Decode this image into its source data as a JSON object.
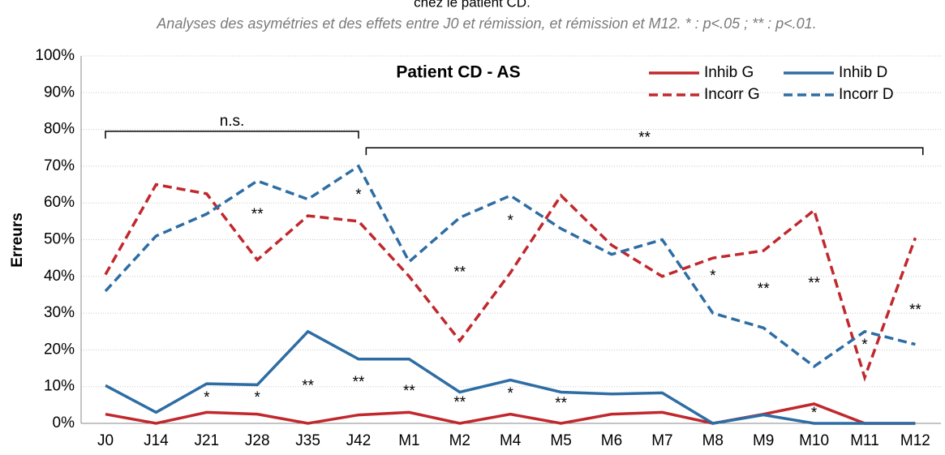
{
  "chart_data": {
    "type": "line",
    "heading": "chez le patient CD.",
    "subtitle": "Analyses des asymétries et des effets entre J0 et rémission, et rémission et M12. * : p<.05 ; ** : p<.01.",
    "title": "Patient CD - AS",
    "y_label": "Erreurs",
    "categories": [
      "J0",
      "J14",
      "J21",
      "J28",
      "J35",
      "J42",
      "M1",
      "M2",
      "M4",
      "M5",
      "M6",
      "M7",
      "M8",
      "M9",
      "M10",
      "M11",
      "M12"
    ],
    "series": [
      {
        "name": "Inhib G",
        "color": "#c0282d",
        "dashed": false,
        "values": [
          2.5,
          0,
          3,
          2.5,
          0,
          2.3,
          3,
          0,
          2.5,
          0,
          2.5,
          3,
          0,
          2.5,
          5.3,
          0,
          0
        ]
      },
      {
        "name": "Inhib D",
        "color": "#2e6da4",
        "dashed": false,
        "values": [
          10.3,
          3,
          10.8,
          10.5,
          25,
          17.5,
          17.5,
          8.5,
          11.8,
          8.5,
          8,
          8.3,
          0,
          2.3,
          0,
          0,
          0
        ]
      },
      {
        "name": "Incorr G",
        "color": "#c0282d",
        "dashed": true,
        "values": [
          40.5,
          65,
          62.5,
          44.5,
          56.5,
          55,
          40,
          22.5,
          41,
          62,
          48.5,
          40,
          45,
          47,
          58,
          12.5,
          50.5
        ]
      },
      {
        "name": "Incorr D",
        "color": "#2e6da4",
        "dashed": true,
        "values": [
          36,
          51,
          57,
          66,
          61,
          70,
          44,
          56,
          62,
          53,
          46,
          50,
          30,
          26,
          15.5,
          25,
          21.5
        ]
      }
    ],
    "ylim": [
      0,
      100
    ],
    "yticks": [
      {
        "value": 0,
        "label": "0%"
      },
      {
        "value": 10,
        "label": "10%"
      },
      {
        "value": 20,
        "label": "20%"
      },
      {
        "value": 30,
        "label": "30%"
      },
      {
        "value": 40,
        "label": "40%"
      },
      {
        "value": 50,
        "label": "50%"
      },
      {
        "value": 60,
        "label": "60%"
      },
      {
        "value": 70,
        "label": "70%"
      },
      {
        "value": 80,
        "label": "80%"
      },
      {
        "value": 90,
        "label": "90%"
      },
      {
        "value": 100,
        "label": "100%"
      }
    ],
    "grid": true,
    "legend": "upper right",
    "brackets": [
      {
        "label": "n.s.",
        "from": 0,
        "to": 5,
        "y": 79.5
      },
      {
        "label": "**",
        "from": 5.15,
        "to": 16.15,
        "y": 75
      }
    ],
    "annotations": [
      {
        "text": "**",
        "x": 3,
        "y": 56.7
      },
      {
        "text": "*",
        "x": 5,
        "y": 62
      },
      {
        "text": "*",
        "x": 2,
        "y": 6.8
      },
      {
        "text": "*",
        "x": 3,
        "y": 6.8
      },
      {
        "text": "**",
        "x": 4,
        "y": 10
      },
      {
        "text": "**",
        "x": 5,
        "y": 11
      },
      {
        "text": "**",
        "x": 6,
        "y": 8.6
      },
      {
        "text": "**",
        "x": 7,
        "y": 41
      },
      {
        "text": "**",
        "x": 7,
        "y": 5.5
      },
      {
        "text": "*",
        "x": 8,
        "y": 55
      },
      {
        "text": "*",
        "x": 8,
        "y": 8
      },
      {
        "text": "**",
        "x": 9,
        "y": 5.3
      },
      {
        "text": "*",
        "x": 12,
        "y": 40
      },
      {
        "text": "**",
        "x": 13,
        "y": 36.4
      },
      {
        "text": "**",
        "x": 14,
        "y": 38
      },
      {
        "text": "*",
        "x": 14,
        "y": 2.6
      },
      {
        "text": "*",
        "x": 15,
        "y": 21.2
      },
      {
        "text": "**",
        "x": 16,
        "y": 30.7
      }
    ]
  }
}
